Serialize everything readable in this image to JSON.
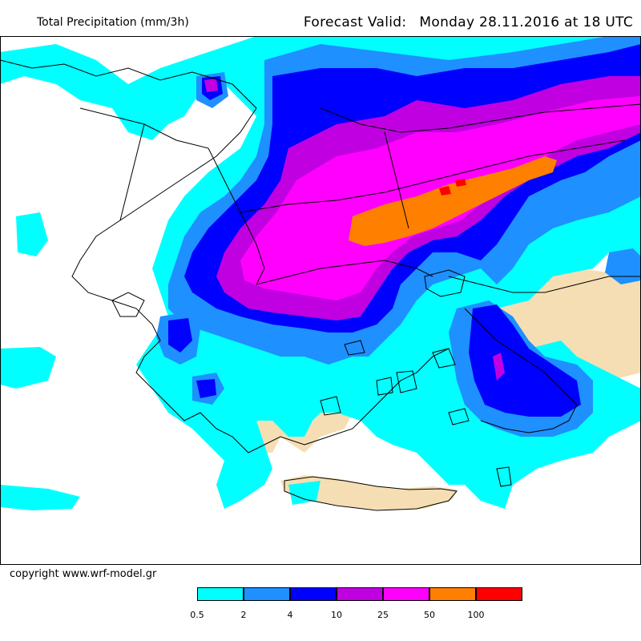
{
  "header": {
    "title": "Total Precipitation (mm/3h)",
    "forecast_label": "Forecast Valid:",
    "forecast_time": "Monday 28.11.2016 at 18 UTC"
  },
  "footer": {
    "copyright": "copyright www.wrf-model.gr"
  },
  "legend": {
    "colors": [
      "#00ffff",
      "#1e90ff",
      "#0000ff",
      "#c000e0",
      "#ff00ff",
      "#ff8000",
      "#ff0000"
    ],
    "labels": [
      "0.5",
      "2",
      "4",
      "10",
      "25",
      "50",
      "100"
    ]
  },
  "map": {
    "sea_color": "#ffffff",
    "land_color": "#f5deb3",
    "border_color": "#000000"
  }
}
